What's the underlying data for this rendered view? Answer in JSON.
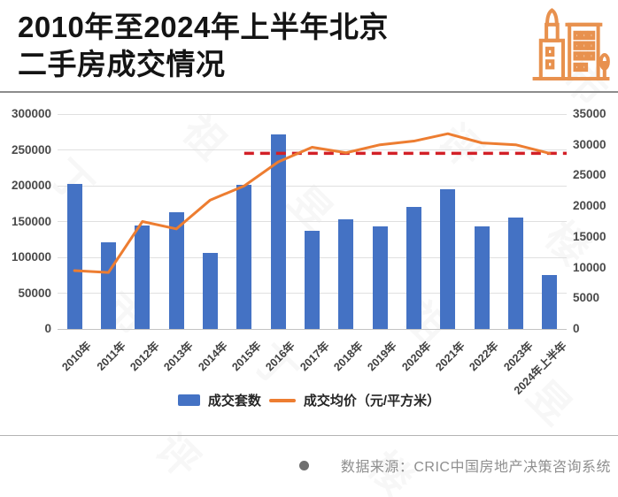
{
  "title": {
    "line1": "2010年至2024年上半年北京",
    "line2": "二手房成交情况"
  },
  "watermark": "丁祖昱评楼市",
  "chart_data": {
    "type": "bar",
    "subtype": "combo-bar-line-dual-axis",
    "categories": [
      "2010年",
      "2011年",
      "2012年",
      "2013年",
      "2014年",
      "2015年",
      "2016年",
      "2017年",
      "2018年",
      "2019年",
      "2020年",
      "2021年",
      "2022年",
      "2023年",
      "2024年上半年"
    ],
    "series": [
      {
        "name": "成交套数",
        "type": "bar",
        "axis": "left",
        "color": "#4472C4",
        "values": [
          203000,
          121000,
          145000,
          163000,
          106000,
          201000,
          272000,
          137000,
          153000,
          143000,
          170000,
          195000,
          143000,
          156000,
          75000
        ]
      },
      {
        "name": "成交均价（元/平方米）",
        "type": "line",
        "axis": "right",
        "color": "#ED7D31",
        "values": [
          9500,
          9200,
          17500,
          16300,
          21000,
          23300,
          27200,
          29600,
          28700,
          30000,
          30600,
          31800,
          30300,
          30000,
          28600
        ]
      }
    ],
    "left_axis": {
      "min": 0,
      "max": 300000,
      "step": 50000,
      "ticks": [
        "300000",
        "250000",
        "200000",
        "150000",
        "100000",
        "50000",
        "0"
      ]
    },
    "right_axis": {
      "min": 0,
      "max": 35000,
      "step": 5000,
      "ticks": [
        "35000",
        "30000",
        "25000",
        "20000",
        "15000",
        "10000",
        "5000",
        "0"
      ]
    },
    "reference_line": {
      "axis": "right",
      "value": 28600,
      "color": "#D22027",
      "style": "dashed",
      "start_category": "2015年"
    },
    "grid": true,
    "legend_position": "bottom"
  },
  "legend": {
    "bar_label": "成交套数",
    "line_label": "成交均价（元/平方米）"
  },
  "footer": {
    "source_text": "数据来源：CRIC中国房地产决策咨询系统"
  }
}
